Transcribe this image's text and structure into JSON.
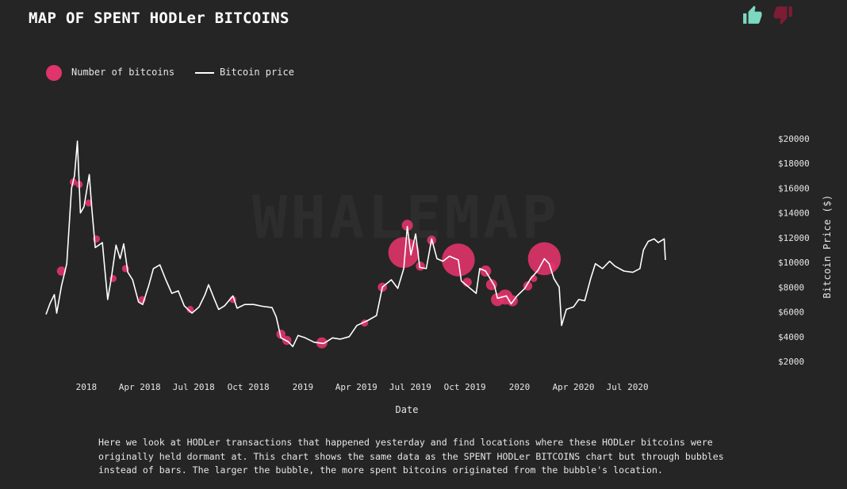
{
  "title": "MAP OF SPENT HODLer BITCOINS",
  "feedback": {
    "like_icon": "thumbs-up-icon",
    "dislike_icon": "thumbs-down-icon",
    "like_color": "#7dd8c0",
    "dislike_color": "#7a1d35"
  },
  "legend": {
    "bubbles_label": "Number of bitcoins",
    "price_label": "Bitcoin price"
  },
  "watermark": "WHALEMAP",
  "description": "Here we look at HODLer transactions that happened yesterday and find locations where these HODLer bitcoins were originally held dormant at. This chart shows the same data as the SPENT HODLer BITCOINS chart but through bubbles instead of bars. The larger the bubble, the more spent bitcoins originated from the bubble's location.",
  "colors": {
    "background": "#252525",
    "price_line": "#ffffff",
    "bubble": "#e0346a"
  },
  "chart_data": {
    "type": "scatter",
    "title": "MAP OF SPENT HODLer BITCOINS",
    "xlabel": "Date",
    "ylabel": "Bitcoin Price ($)",
    "x_ticks": [
      "2018",
      "Apr 2018",
      "Jul 2018",
      "Oct 2018",
      "2019",
      "Apr 2019",
      "Jul 2019",
      "Oct 2019",
      "2020",
      "Apr 2020",
      "Jul 2020"
    ],
    "y_ticks": [
      "$2000",
      "$4000",
      "$6000",
      "$8000",
      "$10000",
      "$12000",
      "$14000",
      "$16000",
      "$18000",
      "$20000"
    ],
    "ylim": [
      2000,
      20000
    ],
    "xlim": [
      "2017-10-25",
      "2020-09-15"
    ],
    "y_axis_side": "right",
    "legend_position": "top-left",
    "grid": false,
    "series": [
      {
        "name": "Bitcoin price",
        "kind": "line",
        "points": [
          [
            "2017-10-25",
            5800
          ],
          [
            "2017-11-01",
            6700
          ],
          [
            "2017-11-08",
            7400
          ],
          [
            "2017-11-12",
            5900
          ],
          [
            "2017-11-20",
            8100
          ],
          [
            "2017-11-29",
            9900
          ],
          [
            "2017-12-07",
            16000
          ],
          [
            "2017-12-12",
            17000
          ],
          [
            "2017-12-17",
            19800
          ],
          [
            "2017-12-22",
            14000
          ],
          [
            "2017-12-28",
            14500
          ],
          [
            "2018-01-06",
            17100
          ],
          [
            "2018-01-10",
            14500
          ],
          [
            "2018-01-16",
            11200
          ],
          [
            "2018-01-22",
            11400
          ],
          [
            "2018-01-28",
            11600
          ],
          [
            "2018-02-02",
            9000
          ],
          [
            "2018-02-06",
            7000
          ],
          [
            "2018-02-12",
            8700
          ],
          [
            "2018-02-20",
            11400
          ],
          [
            "2018-02-27",
            10300
          ],
          [
            "2018-03-05",
            11500
          ],
          [
            "2018-03-12",
            9200
          ],
          [
            "2018-03-20",
            8600
          ],
          [
            "2018-03-30",
            6800
          ],
          [
            "2018-04-06",
            6600
          ],
          [
            "2018-04-16",
            8100
          ],
          [
            "2018-04-24",
            9500
          ],
          [
            "2018-05-05",
            9800
          ],
          [
            "2018-05-15",
            8600
          ],
          [
            "2018-05-25",
            7500
          ],
          [
            "2018-06-05",
            7700
          ],
          [
            "2018-06-15",
            6500
          ],
          [
            "2018-06-28",
            5900
          ],
          [
            "2018-07-10",
            6400
          ],
          [
            "2018-07-20",
            7400
          ],
          [
            "2018-07-26",
            8200
          ],
          [
            "2018-08-05",
            7000
          ],
          [
            "2018-08-12",
            6200
          ],
          [
            "2018-08-22",
            6500
          ],
          [
            "2018-09-05",
            7300
          ],
          [
            "2018-09-12",
            6300
          ],
          [
            "2018-09-25",
            6600
          ],
          [
            "2018-10-10",
            6600
          ],
          [
            "2018-10-25",
            6450
          ],
          [
            "2018-11-10",
            6350
          ],
          [
            "2018-11-17",
            5600
          ],
          [
            "2018-11-25",
            3900
          ],
          [
            "2018-12-07",
            3600
          ],
          [
            "2018-12-15",
            3200
          ],
          [
            "2018-12-24",
            4100
          ],
          [
            "2019-01-05",
            3900
          ],
          [
            "2019-01-20",
            3550
          ],
          [
            "2019-02-05",
            3450
          ],
          [
            "2019-02-20",
            3900
          ],
          [
            "2019-03-05",
            3800
          ],
          [
            "2019-03-20",
            4000
          ],
          [
            "2019-04-02",
            4900
          ],
          [
            "2019-04-20",
            5300
          ],
          [
            "2019-05-05",
            5700
          ],
          [
            "2019-05-15",
            8000
          ],
          [
            "2019-05-30",
            8600
          ],
          [
            "2019-06-10",
            7900
          ],
          [
            "2019-06-20",
            9500
          ],
          [
            "2019-06-26",
            12900
          ],
          [
            "2019-07-02",
            10600
          ],
          [
            "2019-07-10",
            12300
          ],
          [
            "2019-07-17",
            9600
          ],
          [
            "2019-07-28",
            9500
          ],
          [
            "2019-08-06",
            11900
          ],
          [
            "2019-08-15",
            10300
          ],
          [
            "2019-08-25",
            10100
          ],
          [
            "2019-09-05",
            10500
          ],
          [
            "2019-09-20",
            10200
          ],
          [
            "2019-09-25",
            8500
          ],
          [
            "2019-10-05",
            8100
          ],
          [
            "2019-10-20",
            7500
          ],
          [
            "2019-10-26",
            9500
          ],
          [
            "2019-11-05",
            9300
          ],
          [
            "2019-11-20",
            8100
          ],
          [
            "2019-11-25",
            7100
          ],
          [
            "2019-12-10",
            7300
          ],
          [
            "2019-12-18",
            6650
          ],
          [
            "2019-12-28",
            7300
          ],
          [
            "2020-01-10",
            7900
          ],
          [
            "2020-01-20",
            8700
          ],
          [
            "2020-02-01",
            9350
          ],
          [
            "2020-02-12",
            10300
          ],
          [
            "2020-02-20",
            9900
          ],
          [
            "2020-02-28",
            8700
          ],
          [
            "2020-03-08",
            8000
          ],
          [
            "2020-03-12",
            4900
          ],
          [
            "2020-03-20",
            6200
          ],
          [
            "2020-04-01",
            6400
          ],
          [
            "2020-04-10",
            7000
          ],
          [
            "2020-04-20",
            6900
          ],
          [
            "2020-04-30",
            8700
          ],
          [
            "2020-05-08",
            9900
          ],
          [
            "2020-05-20",
            9500
          ],
          [
            "2020-06-01",
            10100
          ],
          [
            "2020-06-10",
            9700
          ],
          [
            "2020-06-25",
            9300
          ],
          [
            "2020-07-10",
            9200
          ],
          [
            "2020-07-22",
            9500
          ],
          [
            "2020-07-28",
            11000
          ],
          [
            "2020-08-05",
            11700
          ],
          [
            "2020-08-15",
            11900
          ],
          [
            "2020-08-22",
            11600
          ],
          [
            "2020-09-01",
            11900
          ],
          [
            "2020-09-03",
            10200
          ]
        ]
      },
      {
        "name": "Number of bitcoins",
        "kind": "bubble",
        "points": [
          {
            "x": "2017-11-20",
            "y": 9300,
            "size": 3
          },
          {
            "x": "2017-12-10",
            "y": 16500,
            "size": 2
          },
          {
            "x": "2017-12-20",
            "y": 16300,
            "size": 2
          },
          {
            "x": "2018-01-05",
            "y": 14800,
            "size": 2
          },
          {
            "x": "2018-01-18",
            "y": 11900,
            "size": 2
          },
          {
            "x": "2018-02-15",
            "y": 8700,
            "size": 2
          },
          {
            "x": "2018-03-08",
            "y": 9500,
            "size": 2
          },
          {
            "x": "2018-04-05",
            "y": 7000,
            "size": 2
          },
          {
            "x": "2018-06-25",
            "y": 6200,
            "size": 2
          },
          {
            "x": "2018-09-05",
            "y": 7000,
            "size": 2
          },
          {
            "x": "2018-11-25",
            "y": 4200,
            "size": 3
          },
          {
            "x": "2018-12-05",
            "y": 3700,
            "size": 3
          },
          {
            "x": "2019-02-02",
            "y": 3500,
            "size": 4
          },
          {
            "x": "2019-04-15",
            "y": 5100,
            "size": 2
          },
          {
            "x": "2019-05-15",
            "y": 8000,
            "size": 3
          },
          {
            "x": "2019-06-20",
            "y": 10800,
            "size": 14
          },
          {
            "x": "2019-06-26",
            "y": 13000,
            "size": 4
          },
          {
            "x": "2019-07-18",
            "y": 9700,
            "size": 3
          },
          {
            "x": "2019-08-06",
            "y": 11800,
            "size": 3
          },
          {
            "x": "2019-09-20",
            "y": 10200,
            "size": 15
          },
          {
            "x": "2019-10-05",
            "y": 8400,
            "size": 3
          },
          {
            "x": "2019-11-05",
            "y": 9300,
            "size": 4
          },
          {
            "x": "2019-11-15",
            "y": 8200,
            "size": 4
          },
          {
            "x": "2019-11-25",
            "y": 7000,
            "size": 5
          },
          {
            "x": "2019-12-08",
            "y": 7200,
            "size": 6
          },
          {
            "x": "2019-12-20",
            "y": 6900,
            "size": 4
          },
          {
            "x": "2020-01-15",
            "y": 8100,
            "size": 3
          },
          {
            "x": "2020-01-25",
            "y": 8700,
            "size": 2
          },
          {
            "x": "2020-02-12",
            "y": 10300,
            "size": 15
          },
          {
            "x": "2020-02-25",
            "y": 9700,
            "size": 2
          }
        ]
      }
    ]
  }
}
